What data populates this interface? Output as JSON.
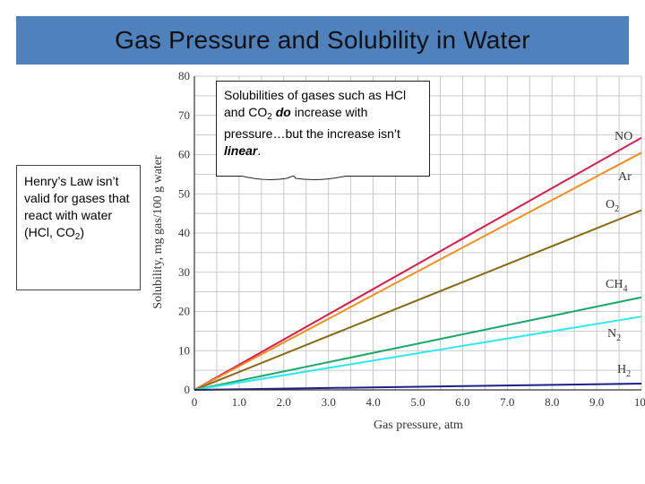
{
  "slide": {
    "title": "Gas Pressure and Solubility in Water"
  },
  "callout": {
    "part1": "Solubilities of gases such as HCl and CO",
    "sub1": "2",
    "part2": " ",
    "emph1": "do",
    "part3": " increase with pressure…but the increase isn’t ",
    "emph2": "linear",
    "part4": "."
  },
  "side_note": {
    "part1": "Henry’s Law isn’t valid for gases that react with water (HCl, CO",
    "sub1": "2",
    "part2": ")"
  },
  "chart_data": {
    "type": "line",
    "xlabel": "Gas pressure, atm",
    "ylabel": "Solubility, mg gas/100 g water",
    "xlim": [
      0,
      10
    ],
    "ylim": [
      0,
      80
    ],
    "xticks": [
      "0",
      "1.0",
      "2.0",
      "3.0",
      "4.0",
      "5.0",
      "6.0",
      "7.0",
      "8.0",
      "9.0",
      "10."
    ],
    "yticks": [
      "0",
      "10",
      "20",
      "30",
      "40",
      "50",
      "60",
      "70",
      "80"
    ],
    "grid": true,
    "series": [
      {
        "name": "NO",
        "base": "NO",
        "sub": "",
        "color": "#e0194a",
        "x": [
          0,
          10
        ],
        "y": [
          0,
          64.3
        ]
      },
      {
        "name": "Ar",
        "base": "Ar",
        "sub": "",
        "color": "#f78c1f",
        "x": [
          0,
          10
        ],
        "y": [
          0,
          60.5
        ]
      },
      {
        "name": "O2",
        "base": "O",
        "sub": "2",
        "color": "#8b6914",
        "x": [
          0,
          10
        ],
        "y": [
          0,
          45.8
        ]
      },
      {
        "name": "CH4",
        "base": "CH",
        "sub": "4",
        "color": "#1aa86a",
        "x": [
          0,
          10
        ],
        "y": [
          0,
          23.6
        ]
      },
      {
        "name": "N2",
        "base": "N",
        "sub": "2",
        "color": "#2ee8f0",
        "x": [
          0,
          10
        ],
        "y": [
          0,
          18.7
        ]
      },
      {
        "name": "H2",
        "base": "H",
        "sub": "2",
        "color": "#1a1f8c",
        "x": [
          0,
          10
        ],
        "y": [
          0,
          1.6
        ]
      }
    ]
  }
}
